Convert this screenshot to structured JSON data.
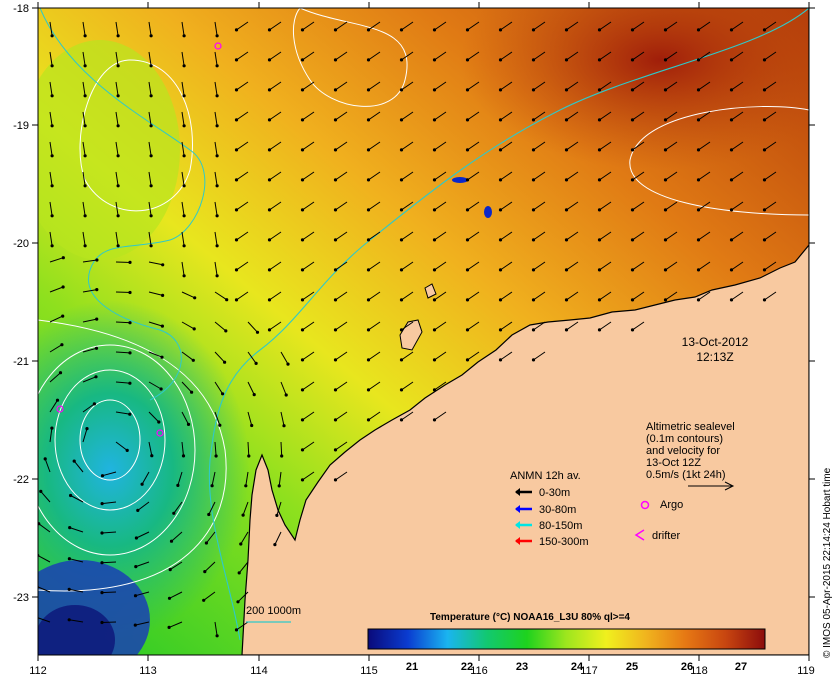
{
  "colors": {
    "land": "#f8c9a0",
    "coast": "#000000",
    "contour": "#ffffff",
    "bathy": "#2fc9c9",
    "arrow": "#000000",
    "argo": "#ff00ff",
    "drifter": "#ff00ff"
  },
  "axes": {
    "x_ticks": [
      "112",
      "113",
      "114",
      "115",
      "116",
      "117",
      "118",
      "119"
    ],
    "y_ticks": [
      "-18",
      "-19",
      "-20",
      "-21",
      "-22",
      "-23"
    ]
  },
  "datetime": {
    "date": "13-Oct-2012",
    "time": "12:13Z"
  },
  "altimetry": {
    "lines": [
      "Altimetric sealevel",
      "(0.1m contours)",
      "and velocity for",
      "13-Oct 12Z",
      "0.5m/s (1kt 24h)"
    ]
  },
  "anmn_legend": {
    "title": "ANMN 12h av.",
    "items": [
      {
        "label": "0-30m",
        "color": "#000000"
      },
      {
        "label": "30-80m",
        "color": "#0000ff"
      },
      {
        "label": "80-150m",
        "color": "#00e5e5"
      },
      {
        "label": "150-300m",
        "color": "#ff0000"
      }
    ]
  },
  "symbols": {
    "argo": "Argo",
    "drifter": "drifter"
  },
  "bathy_legend": "200  1000m",
  "colorbar": {
    "title": "Temperature (°C) NOAA16_L3U 80% ql>=4",
    "ticks": [
      "21",
      "22",
      "23",
      "24",
      "25",
      "26",
      "27"
    ],
    "stops": [
      "#0a0a7a",
      "#0a3cd0",
      "#1ab4f0",
      "#12c870",
      "#1ed21e",
      "#9ee61e",
      "#f0f01e",
      "#f0b41e",
      "#e67814",
      "#c84610",
      "#8c0c0c"
    ]
  },
  "credit": "© IMOS 05-Apr-2015 22:14:24 Hobart time"
}
